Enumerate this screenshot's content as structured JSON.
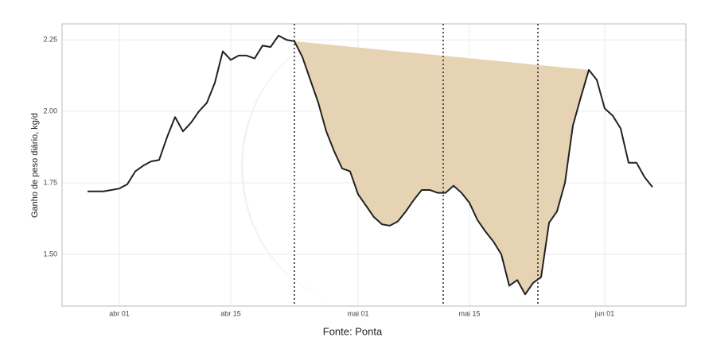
{
  "chart_data": {
    "type": "line",
    "y_label": "Ganho de peso diário, kg/d",
    "caption": "Fonte: Ponta",
    "x": [
      -3,
      -2,
      -1,
      0,
      1,
      2,
      3,
      4,
      5,
      6,
      7,
      8,
      9,
      10,
      11,
      12,
      13,
      14,
      15,
      16,
      17,
      18,
      19,
      20,
      21,
      22,
      23,
      24,
      25,
      26,
      27,
      28,
      29,
      30,
      31,
      32,
      33,
      34,
      35,
      36,
      37,
      38,
      39,
      40,
      41,
      42,
      43,
      44,
      45,
      46,
      47,
      48,
      49,
      50,
      51,
      52,
      53,
      54,
      55,
      56,
      57,
      58,
      59,
      60,
      61,
      62,
      63,
      64,
      65,
      66,
      67,
      68
    ],
    "series": [
      {
        "color": "#222222",
        "values": [
          1.72,
          1.72,
          1.72,
          1.725,
          1.73,
          1.745,
          1.79,
          1.81,
          1.825,
          1.83,
          1.91,
          1.98,
          1.93,
          1.96,
          2.0,
          2.03,
          2.1,
          2.21,
          2.18,
          2.195,
          2.195,
          2.185,
          2.23,
          2.225,
          2.265,
          2.25,
          2.245,
          2.19,
          2.11,
          2.03,
          1.93,
          1.86,
          1.8,
          1.79,
          1.71,
          1.67,
          1.63,
          1.605,
          1.6,
          1.615,
          1.65,
          1.69,
          1.725,
          1.725,
          1.715,
          1.715,
          1.74,
          1.715,
          1.68,
          1.62,
          1.58,
          1.545,
          1.5,
          1.39,
          1.41,
          1.36,
          1.4,
          1.42,
          1.61,
          1.65,
          1.75,
          1.95,
          2.05,
          2.145,
          2.11,
          2.01,
          1.985,
          1.94,
          1.82,
          1.82,
          1.77,
          1.735
        ]
      }
    ],
    "shade": {
      "from": 23,
      "to": 60,
      "color": "#e6d3b3"
    },
    "vlines": [
      23,
      41.7,
      53.6
    ],
    "xlim": [
      -6.2,
      72.2
    ],
    "xticks": [
      {
        "value": 1,
        "label": "abr 01"
      },
      {
        "value": 15,
        "label": "abr 15"
      },
      {
        "value": 31,
        "label": "mai 01"
      },
      {
        "value": 45,
        "label": "mai 15"
      },
      {
        "value": 62,
        "label": "jun 01"
      }
    ],
    "ylim": [
      1.319,
      2.306
    ],
    "yticks": [
      {
        "value": 1.5,
        "label": "1.50"
      },
      1.75,
      {
        "value": 2.0,
        "label": "2.00"
      },
      2.25
    ],
    "grid": true
  }
}
